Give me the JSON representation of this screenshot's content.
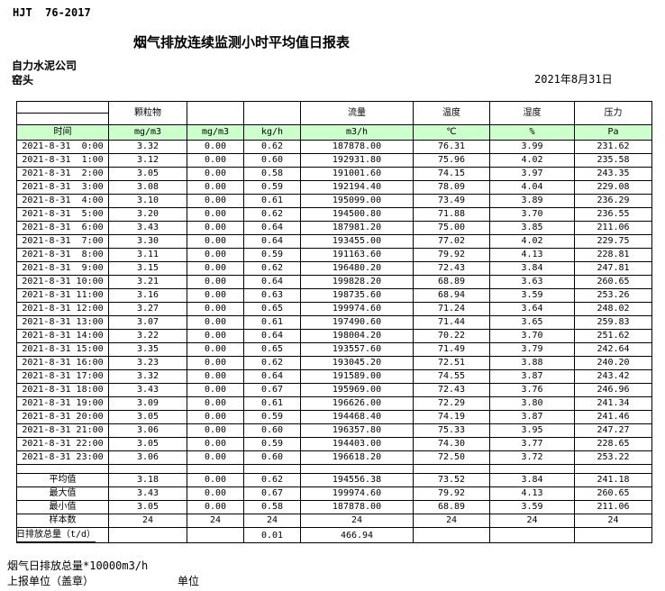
{
  "header": {
    "doc_code": "HJT  76-2017",
    "title": "烟气排放连续监测小时平均值日报表",
    "company": "自力水泥公司",
    "station": "窑头",
    "date": "2021年8月31日"
  },
  "table": {
    "column_groups": [
      "颗粒物",
      "流量",
      "温度",
      "湿度",
      "压力"
    ],
    "unit_row": {
      "time_label": "时间",
      "units": [
        "mg/m3",
        "mg/m3",
        "kg/h",
        "m3/h",
        "℃",
        "%",
        "Pa"
      ]
    },
    "data_rows": [
      {
        "time": "2021-8-31  0:00",
        "values": [
          "3.32",
          "0.00",
          "0.62",
          "187878.00",
          "76.31",
          "3.99",
          "231.62"
        ]
      },
      {
        "time": "2021-8-31  1:00",
        "values": [
          "3.12",
          "0.00",
          "0.60",
          "192931.80",
          "75.96",
          "4.02",
          "235.58"
        ]
      },
      {
        "time": "2021-8-31  2:00",
        "values": [
          "3.05",
          "0.00",
          "0.58",
          "191001.60",
          "74.15",
          "3.97",
          "243.35"
        ]
      },
      {
        "time": "2021-8-31  3:00",
        "values": [
          "3.08",
          "0.00",
          "0.59",
          "192194.40",
          "78.09",
          "4.04",
          "229.08"
        ]
      },
      {
        "time": "2021-8-31  4:00",
        "values": [
          "3.10",
          "0.00",
          "0.61",
          "195099.00",
          "73.49",
          "3.89",
          "236.29"
        ]
      },
      {
        "time": "2021-8-31  5:00",
        "values": [
          "3.20",
          "0.00",
          "0.62",
          "194500.80",
          "71.88",
          "3.70",
          "236.55"
        ]
      },
      {
        "time": "2021-8-31  6:00",
        "values": [
          "3.43",
          "0.00",
          "0.64",
          "187981.20",
          "75.00",
          "3.85",
          "211.06"
        ]
      },
      {
        "time": "2021-8-31  7:00",
        "values": [
          "3.30",
          "0.00",
          "0.64",
          "193455.00",
          "77.02",
          "4.02",
          "229.75"
        ]
      },
      {
        "time": "2021-8-31  8:00",
        "values": [
          "3.11",
          "0.00",
          "0.59",
          "191163.60",
          "79.92",
          "4.13",
          "228.81"
        ]
      },
      {
        "time": "2021-8-31  9:00",
        "values": [
          "3.15",
          "0.00",
          "0.62",
          "196480.20",
          "72.43",
          "3.84",
          "247.81"
        ]
      },
      {
        "time": "2021-8-31 10:00",
        "values": [
          "3.21",
          "0.00",
          "0.64",
          "199828.20",
          "68.89",
          "3.63",
          "260.65"
        ]
      },
      {
        "time": "2021-8-31 11:00",
        "values": [
          "3.16",
          "0.00",
          "0.63",
          "198735.60",
          "68.94",
          "3.59",
          "253.26"
        ]
      },
      {
        "time": "2021-8-31 12:00",
        "values": [
          "3.27",
          "0.00",
          "0.65",
          "199974.60",
          "71.24",
          "3.64",
          "248.02"
        ]
      },
      {
        "time": "2021-8-31 13:00",
        "values": [
          "3.07",
          "0.00",
          "0.61",
          "197490.60",
          "71.44",
          "3.65",
          "259.83"
        ]
      },
      {
        "time": "2021-8-31 14:00",
        "values": [
          "3.22",
          "0.00",
          "0.64",
          "198004.20",
          "70.22",
          "3.70",
          "251.62"
        ]
      },
      {
        "time": "2021-8-31 15:00",
        "values": [
          "3.35",
          "0.00",
          "0.65",
          "193557.60",
          "71.49",
          "3.79",
          "242.64"
        ]
      },
      {
        "time": "2021-8-31 16:00",
        "values": [
          "3.23",
          "0.00",
          "0.62",
          "193045.20",
          "72.51",
          "3.88",
          "240.20"
        ]
      },
      {
        "time": "2021-8-31 17:00",
        "values": [
          "3.32",
          "0.00",
          "0.64",
          "191589.00",
          "74.55",
          "3.87",
          "243.42"
        ]
      },
      {
        "time": "2021-8-31 18:00",
        "values": [
          "3.43",
          "0.00",
          "0.67",
          "195969.00",
          "72.43",
          "3.76",
          "246.96"
        ]
      },
      {
        "time": "2021-8-31 19:00",
        "values": [
          "3.09",
          "0.00",
          "0.61",
          "196626.00",
          "72.29",
          "3.80",
          "241.34"
        ]
      },
      {
        "time": "2021-8-31 20:00",
        "values": [
          "3.05",
          "0.00",
          "0.59",
          "194468.40",
          "74.19",
          "3.87",
          "241.46"
        ]
      },
      {
        "time": "2021-8-31 21:00",
        "values": [
          "3.06",
          "0.00",
          "0.60",
          "196357.80",
          "75.33",
          "3.95",
          "247.27"
        ]
      },
      {
        "time": "2021-8-31 22:00",
        "values": [
          "3.05",
          "0.00",
          "0.59",
          "194403.00",
          "74.30",
          "3.77",
          "228.65"
        ]
      },
      {
        "time": "2021-8-31 23:00",
        "values": [
          "3.06",
          "0.00",
          "0.60",
          "196618.20",
          "72.50",
          "3.72",
          "253.22"
        ]
      }
    ],
    "summary_rows": [
      {
        "label": "平均值",
        "values": [
          "3.18",
          "0.00",
          "0.62",
          "194556.38",
          "73.52",
          "3.84",
          "241.18"
        ]
      },
      {
        "label": "最大值",
        "values": [
          "3.43",
          "0.00",
          "0.67",
          "199974.60",
          "79.92",
          "4.13",
          "260.65"
        ]
      },
      {
        "label": "最小值",
        "values": [
          "3.05",
          "0.00",
          "0.58",
          "187878.00",
          "68.89",
          "3.59",
          "211.06"
        ]
      },
      {
        "label": "样本数",
        "values": [
          "24",
          "24",
          "24",
          "24",
          "24",
          "24",
          "24"
        ]
      }
    ],
    "total_row": {
      "label": "日排放总量（t/d）",
      "values": [
        "",
        "",
        "0.01",
        "466.94",
        "",
        "",
        ""
      ]
    }
  },
  "footer": {
    "note": "烟气日排放总量*10000m3/h",
    "report_unit_label": "上报单位（盖章）",
    "unit_label": "单位"
  },
  "colors": {
    "header_green": "#CCFFCC",
    "border": "#000000"
  }
}
